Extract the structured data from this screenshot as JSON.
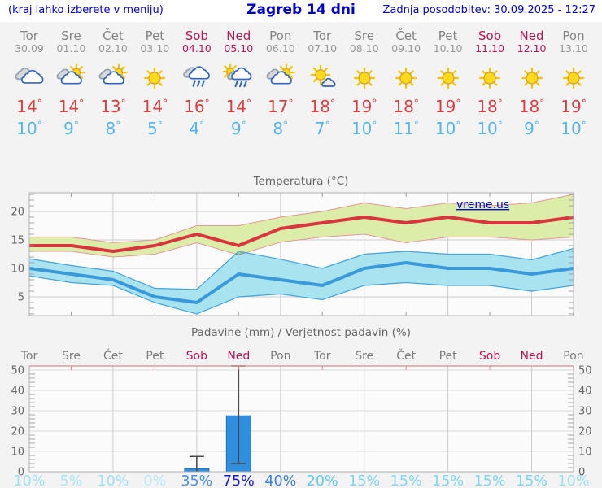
{
  "header": {
    "left_note": "(kraj lahko izberete v meniju)",
    "title": "Zagreb 14 dni",
    "last_update": "Zadnja posodobitev: 30.09.2025 - 12:27"
  },
  "colors": {
    "header_blue": "#0000e0",
    "weekend": "#bb1457",
    "weekday": "#848484",
    "tmax_text": "#e23c41",
    "tmin_text": "#57b5ec",
    "tmax_line": "#d8353f",
    "tmin_line": "#3a9ad9",
    "tmax_band": "#dcedaa",
    "tmax_band_edge": "#e59898",
    "tmin_band": "#a9e3ef",
    "tmin_band_edge": "#46a3dc",
    "bar_fill": "#2f8ede",
    "bar_edge": "#1f6fb8",
    "whisker": "#4a4a4a",
    "axis": "#b0b0b0",
    "grid": "#cdcdcd",
    "chart_text": "#666666",
    "watermark_blue": "#0008dd"
  },
  "forecast": {
    "days": [
      {
        "name": "Tor",
        "date": "30.09",
        "weekend": false,
        "icon": "cloudy",
        "tmax": 14,
        "tmin": 10
      },
      {
        "name": "Sre",
        "date": "01.10",
        "weekend": false,
        "icon": "partly-cloudy",
        "tmax": 14,
        "tmin": 9
      },
      {
        "name": "Čet",
        "date": "02.10",
        "weekend": false,
        "icon": "partly-cloudy",
        "tmax": 13,
        "tmin": 8
      },
      {
        "name": "Pet",
        "date": "03.10",
        "weekend": false,
        "icon": "sunny",
        "tmax": 14,
        "tmin": 5
      },
      {
        "name": "Sob",
        "date": "04.10",
        "weekend": true,
        "icon": "rain",
        "tmax": 16,
        "tmin": 4
      },
      {
        "name": "Ned",
        "date": "05.10",
        "weekend": true,
        "icon": "sun-shower",
        "tmax": 14,
        "tmin": 9
      },
      {
        "name": "Pon",
        "date": "06.10",
        "weekend": false,
        "icon": "partly-cloudy",
        "tmax": 17,
        "tmin": 8
      },
      {
        "name": "Tor",
        "date": "07.10",
        "weekend": false,
        "icon": "mostly-sunny",
        "tmax": 18,
        "tmin": 7
      },
      {
        "name": "Sre",
        "date": "08.10",
        "weekend": false,
        "icon": "sunny",
        "tmax": 19,
        "tmin": 10
      },
      {
        "name": "Čet",
        "date": "09.10",
        "weekend": false,
        "icon": "sunny",
        "tmax": 18,
        "tmin": 11
      },
      {
        "name": "Pet",
        "date": "10.10",
        "weekend": false,
        "icon": "sunny",
        "tmax": 19,
        "tmin": 10
      },
      {
        "name": "Sob",
        "date": "11.10",
        "weekend": true,
        "icon": "sunny",
        "tmax": 18,
        "tmin": 10
      },
      {
        "name": "Ned",
        "date": "12.10",
        "weekend": true,
        "icon": "sunny",
        "tmax": 18,
        "tmin": 9
      },
      {
        "name": "Pon",
        "date": "13.10",
        "weekend": false,
        "icon": "sunny",
        "tmax": 19,
        "tmin": 10
      }
    ]
  },
  "chart_data": [
    {
      "type": "line",
      "title": "Temperatura (°C)",
      "watermark": "vreme.us",
      "ylabel": "",
      "ylim": [
        1.5,
        23.5
      ],
      "yticks": [
        5,
        10,
        15,
        20
      ],
      "grid": true,
      "legend_position": "none",
      "categories": [
        "Tor",
        "Sre",
        "Čet",
        "Pet",
        "Sob",
        "Ned",
        "Pon",
        "Tor",
        "Sre",
        "Čet",
        "Pet",
        "Sob",
        "Ned",
        "Pon"
      ],
      "series": [
        {
          "name": "max_temp",
          "values": [
            14,
            14,
            13,
            14,
            16,
            14,
            17,
            18,
            19,
            18,
            19,
            18,
            18,
            19
          ]
        },
        {
          "name": "max_temp_band_upper",
          "values": [
            15.5,
            15.5,
            14.5,
            15,
            17.5,
            17.5,
            19,
            20,
            21.5,
            20.5,
            21.5,
            21,
            21.5,
            23
          ]
        },
        {
          "name": "max_temp_band_lower",
          "values": [
            13,
            13,
            12,
            12.5,
            14.5,
            12.4,
            14.6,
            15.5,
            16,
            14.5,
            15.5,
            15.5,
            15,
            15.5
          ]
        },
        {
          "name": "min_temp",
          "values": [
            10,
            9,
            8,
            5,
            4,
            9,
            8,
            7,
            10,
            11,
            10,
            10,
            9,
            10
          ]
        },
        {
          "name": "min_temp_band_upper",
          "values": [
            11.7,
            10.5,
            9.5,
            6.5,
            6.3,
            13,
            11.6,
            10,
            12.5,
            13,
            12.5,
            12.5,
            11.5,
            13.5
          ]
        },
        {
          "name": "min_temp_band_lower",
          "values": [
            8.7,
            7.5,
            7,
            4,
            2,
            5,
            5.5,
            4.5,
            7,
            7.5,
            7,
            7,
            6,
            7
          ]
        }
      ]
    },
    {
      "type": "bar",
      "title": "Padavine (mm) / Verjetnost padavin (%)",
      "ylim": [
        0,
        52
      ],
      "yticks": [
        0,
        10,
        20,
        30,
        40,
        50
      ],
      "grid": true,
      "categories": [
        "Tor",
        "Sre",
        "Čet",
        "Pet",
        "Sob",
        "Ned",
        "Pon",
        "Tor",
        "Sre",
        "Čet",
        "Pet",
        "Sob",
        "Ned",
        "Pon"
      ],
      "weekend_indexes": [
        4,
        5,
        11,
        12
      ],
      "precipitation_mm": [
        0,
        0,
        0,
        0,
        1.5,
        27.5,
        0,
        0,
        0,
        0,
        0,
        0,
        0,
        0
      ],
      "error_low_mm": [
        0,
        0,
        0,
        0,
        0,
        4,
        0,
        0,
        0,
        0,
        0,
        0,
        0,
        0
      ],
      "error_high_mm": [
        0,
        0,
        0,
        0,
        7.5,
        52,
        0,
        0,
        0,
        0,
        0,
        0,
        0,
        0
      ],
      "probability_pct": [
        "10%",
        "5%",
        "10%",
        "0%",
        "35%",
        "75%",
        "40%",
        "20%",
        "15%",
        "15%",
        "15%",
        "15%",
        "15%",
        "10%"
      ],
      "probability_colors": [
        "#9ddff5",
        "#a8e4f6",
        "#9ddff5",
        "#b7e9f8",
        "#4a8fe0",
        "#1b1bd4",
        "#3c80e2",
        "#62c8ee",
        "#7fd5f2",
        "#7fd5f2",
        "#7fd5f2",
        "#7fd5f2",
        "#7fd5f2",
        "#9ddff5"
      ]
    }
  ]
}
